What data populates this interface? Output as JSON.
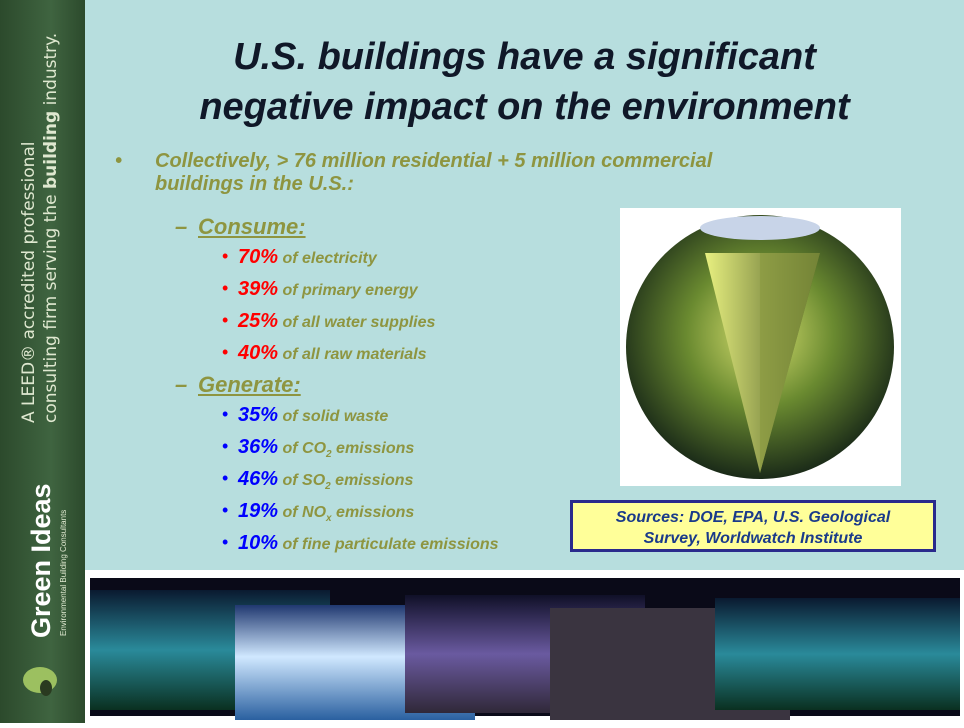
{
  "sidebar": {
    "tagline_1": "A LEED® accredited professional",
    "tagline_2a": "consulting firm serving the",
    "tagline_2b": "building",
    "tagline_2c": "industry.",
    "brand": "Green Ideas",
    "brand_sub": "Environmental Building Consultants"
  },
  "title": [
    "U.S. buildings have a significant",
    "negative impact on the environment"
  ],
  "intro": [
    "Collectively, > 76 million residential + 5 million commercial",
    "buildings in the U.S.:"
  ],
  "groups": [
    {
      "heading": "Consume:",
      "color": "#ff0000",
      "items": [
        {
          "pct": "70%",
          "text": "of electricity"
        },
        {
          "pct": "39%",
          "text": "of primary energy"
        },
        {
          "pct": "25%",
          "text": "of all water supplies"
        },
        {
          "pct": "40%",
          "text": "of all raw materials"
        }
      ]
    },
    {
      "heading": "Generate:",
      "color": "#0000ff",
      "items": [
        {
          "pct": "35%",
          "text": "of solid waste"
        },
        {
          "pct": "36%",
          "text": "of CO",
          "sub": "2",
          "rest": " emissions"
        },
        {
          "pct": "46%",
          "text": "of SO",
          "sub": "2",
          "rest": " emissions"
        },
        {
          "pct": "19%",
          "text": "of NO",
          "sub": "x",
          "rest": " emissions"
        },
        {
          "pct": "10%",
          "text": "of fine particulate emissions"
        }
      ]
    }
  ],
  "sources": [
    "Sources: DOE, EPA, U.S. Geological",
    "Survey, Worldwatch Institute"
  ]
}
